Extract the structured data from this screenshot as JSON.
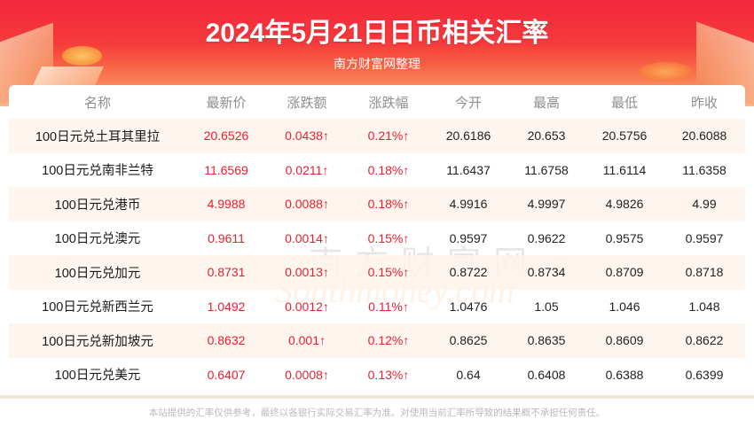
{
  "header": {
    "title": "2024年5月21日日币相关汇率",
    "subtitle": "南方财富网整理"
  },
  "watermark": {
    "cn": "南方财富网",
    "en": "Southmoney.com"
  },
  "colors": {
    "banner_red": "#f4273b",
    "up_red": "#e8202f",
    "row_stripe": "#fdf3eb",
    "header_gray": "#8e8e8e"
  },
  "table": {
    "columns": [
      "名称",
      "最新价",
      "涨跌额",
      "涨跌幅",
      "今开",
      "最高",
      "最低",
      "昨收"
    ],
    "rows": [
      {
        "name": "100日元兑土耳其里拉",
        "latest": "20.6526",
        "change": "0.0438↑",
        "change_pct": "0.21%↑",
        "open": "20.6186",
        "high": "20.653",
        "low": "20.5756",
        "prev_close": "20.6088"
      },
      {
        "name": "100日元兑南非兰特",
        "latest": "11.6569",
        "change": "0.0211↑",
        "change_pct": "0.18%↑",
        "open": "11.6437",
        "high": "11.6758",
        "low": "11.6114",
        "prev_close": "11.6358"
      },
      {
        "name": "100日元兑港币",
        "latest": "4.9988",
        "change": "0.0088↑",
        "change_pct": "0.18%↑",
        "open": "4.9916",
        "high": "4.9997",
        "low": "4.9826",
        "prev_close": "4.99"
      },
      {
        "name": "100日元兑澳元",
        "latest": "0.9611",
        "change": "0.0014↑",
        "change_pct": "0.15%↑",
        "open": "0.9597",
        "high": "0.9622",
        "low": "0.9575",
        "prev_close": "0.9597"
      },
      {
        "name": "100日元兑加元",
        "latest": "0.8731",
        "change": "0.0013↑",
        "change_pct": "0.15%↑",
        "open": "0.8722",
        "high": "0.8734",
        "low": "0.8709",
        "prev_close": "0.8718"
      },
      {
        "name": "100日元兑新西兰元",
        "latest": "1.0492",
        "change": "0.0012↑",
        "change_pct": "0.11%↑",
        "open": "1.0476",
        "high": "1.05",
        "low": "1.046",
        "prev_close": "1.048"
      },
      {
        "name": "100日元兑新加坡元",
        "latest": "0.8632",
        "change": "0.001↑",
        "change_pct": "0.12%↑",
        "open": "0.8625",
        "high": "0.8635",
        "low": "0.8609",
        "prev_close": "0.8622"
      },
      {
        "name": "100日元兑美元",
        "latest": "0.6407",
        "change": "0.0008↑",
        "change_pct": "0.13%↑",
        "open": "0.64",
        "high": "0.6408",
        "low": "0.6388",
        "prev_close": "0.6399"
      }
    ]
  },
  "footer": {
    "disclaimer": "本站提供的汇率仅供参考，最终以各银行实际交易汇率为准。对使用当前汇率所导致的结果概不承担任何责任。"
  }
}
